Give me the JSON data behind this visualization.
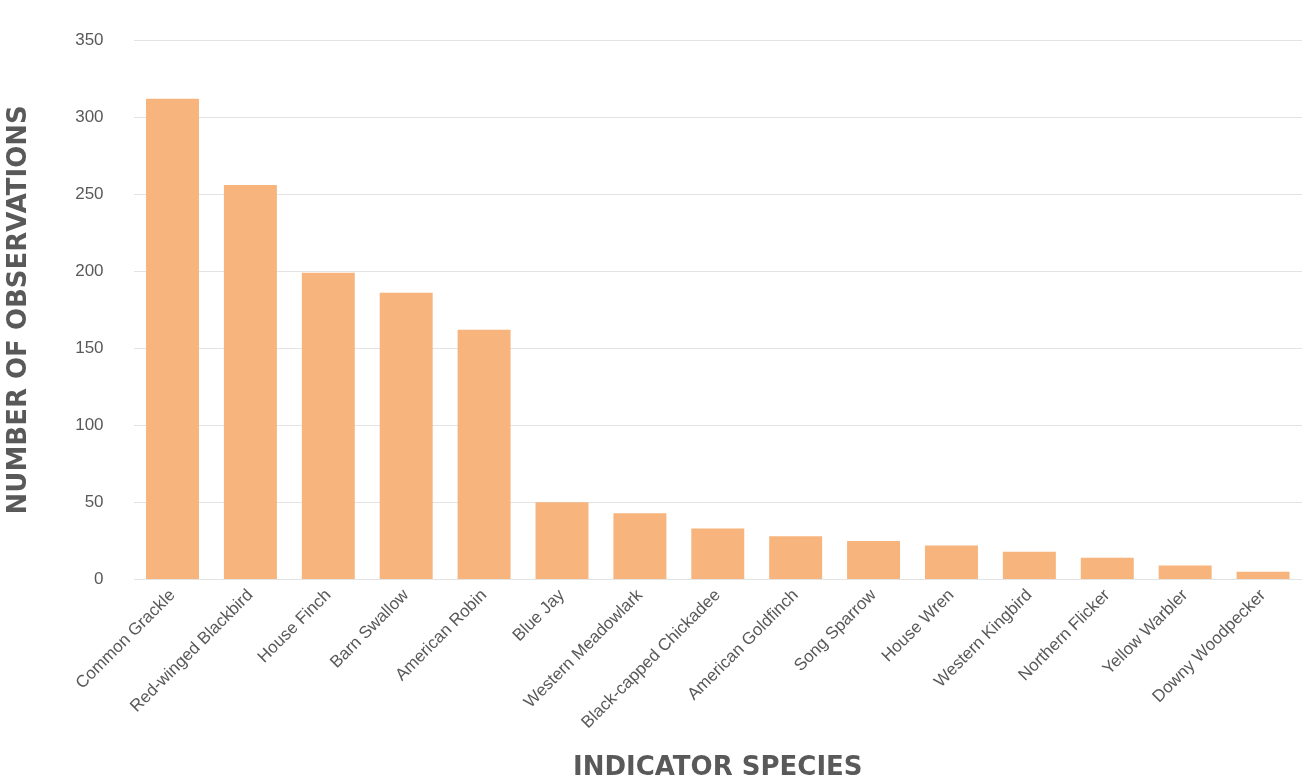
{
  "chart_data": {
    "type": "bar",
    "xlabel": "INDICATOR SPECIES",
    "ylabel": "NUMBER OF OBSERVATIONS",
    "categories": [
      "Common Grackle",
      "Red-winged Blackbird",
      "House Finch",
      "Barn Swallow",
      "American Robin",
      "Blue Jay",
      "Western Meadowlark",
      "Black-capped Chickadee",
      "American Goldfinch",
      "Song Sparrow",
      "House Wren",
      "Western Kingbird",
      "Northern Flicker",
      "Yellow Warbler",
      "Downy Woodpecker"
    ],
    "values": [
      312,
      256,
      199,
      186,
      162,
      50,
      43,
      33,
      28,
      25,
      22,
      18,
      14,
      9,
      5
    ],
    "color": "#f7b47c",
    "ylim": [
      0,
      350
    ],
    "yticks": [
      0,
      50,
      100,
      150,
      200,
      250,
      300,
      350
    ],
    "grid": "y",
    "legend": false
  }
}
